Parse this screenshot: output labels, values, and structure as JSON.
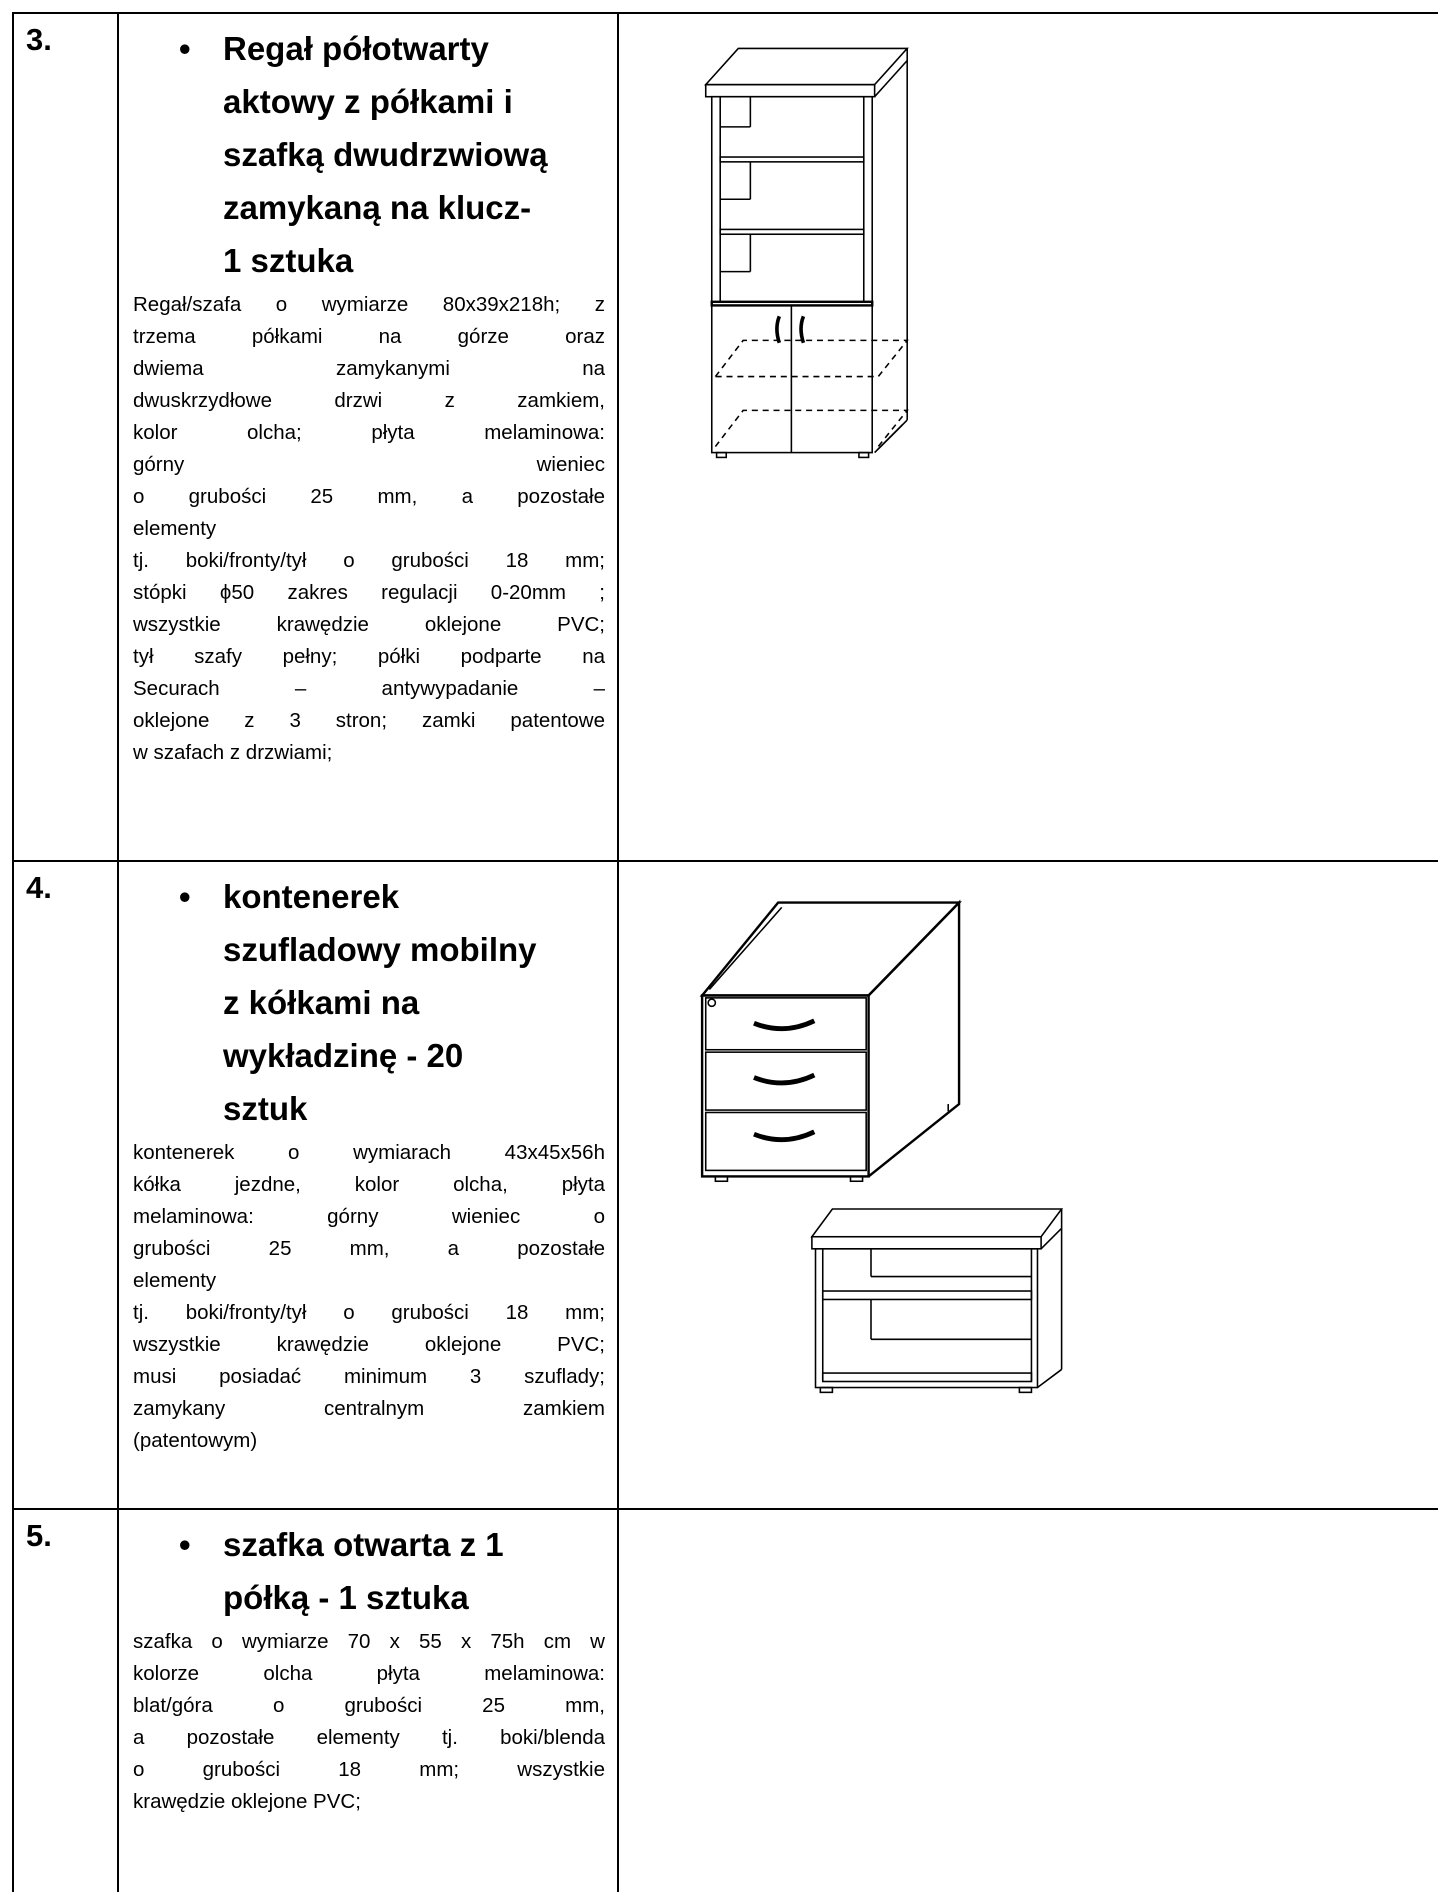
{
  "table": {
    "rows": [
      {
        "number": "3.",
        "title_lines": [
          "Regał półotwarty",
          "aktowy z półkami i",
          "szafką dwudrzwiową",
          "zamykaną na klucz-",
          "1 sztuka"
        ],
        "description_lines": [
          "Regał/szafa o wymiarze 80x39x218h; z",
          "trzema półkami na górze oraz",
          "dwiema zamykanymi na",
          "dwuskrzydłowe drzwi z zamkiem,",
          "kolor olcha; płyta melaminowa:",
          "górny wieniec",
          "o grubości 25 mm, a pozostałe",
          "elementy",
          "tj. boki/fronty/tył o grubości 18 mm;",
          "stópki ϕ50 zakres regulacji 0-20mm ;",
          "wszystkie krawędzie oklejone PVC;",
          "tył szafy pełny; półki podparte na",
          "Securach – antywypadanie –",
          "oklejone z 3 stron; zamki patentowe",
          "w szafach z drzwiami;"
        ]
      },
      {
        "number": "4.",
        "title_lines": [
          "kontenerek",
          "szufladowy mobilny",
          "z kółkami na",
          "wykładzinę - 20",
          "sztuk"
        ],
        "description_lines": [
          "kontenerek o wymiarach 43x45x56h",
          "kółka jezdne, kolor olcha, płyta",
          "melaminowa: górny wieniec o",
          "grubości 25 mm, a pozostałe",
          "elementy",
          "tj. boki/fronty/tył o grubości 18 mm;",
          "wszystkie krawędzie oklejone PVC;",
          "musi posiadać minimum 3 szuflady;",
          "zamykany centralnym zamkiem",
          "(patentowym)"
        ]
      },
      {
        "number": "5.",
        "title_lines": [
          "szafka otwarta z 1",
          "półką - 1 sztuka"
        ],
        "description_lines": [
          "szafka o wymiarze 70 x 55 x 75h cm w",
          "kolorze olcha płyta melaminowa:",
          "blat/góra o grubości 25 mm,",
          "a pozostałe elementy tj. boki/blenda",
          "o grubości 18 mm; wszystkie",
          "krawędzie oklejone PVC;"
        ]
      }
    ]
  }
}
